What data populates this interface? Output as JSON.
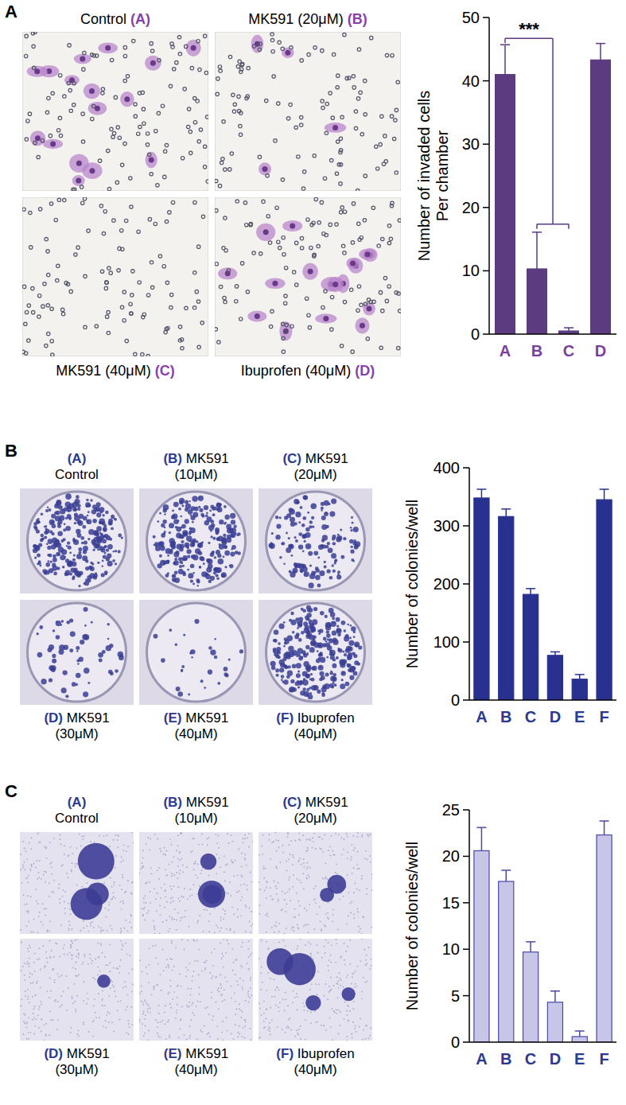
{
  "chart_data": [
    {
      "type": "bar",
      "panel": "A",
      "image_labels": [
        {
          "name": "Control",
          "letter": "(A)"
        },
        {
          "name": "MK591 (20μM)",
          "letter": "(B)"
        },
        {
          "name": "MK591 (40μM)",
          "letter": "(C)"
        },
        {
          "name": "Ibuprofen (40μM)",
          "letter": "(D)"
        }
      ],
      "y_label": [
        "Number of invaded cells",
        "Per chamber"
      ],
      "categories": [
        "A",
        "B",
        "C",
        "D"
      ],
      "values": [
        41,
        10.3,
        0.5,
        43.3
      ],
      "errors": [
        4.7,
        5.8,
        0.5,
        2.6
      ],
      "color": "#5c3b80",
      "ylim": [
        0,
        50
      ],
      "yticks": [
        0,
        10,
        20,
        30,
        40,
        50
      ],
      "annotations": [
        "***"
      ]
    },
    {
      "type": "bar",
      "panel": "B",
      "image_labels": [
        {
          "letter": "(A)",
          "lines": [
            "Control"
          ]
        },
        {
          "letter": "(B)",
          "lines": [
            "MK591",
            "(10μM)"
          ]
        },
        {
          "letter": "(C)",
          "lines": [
            "MK591",
            "(20μM)"
          ]
        },
        {
          "letter": "(D)",
          "lines": [
            "MK591",
            "(30μM)"
          ]
        },
        {
          "letter": "(E)",
          "lines": [
            "MK591",
            "(40μM)"
          ]
        },
        {
          "letter": "(F)",
          "lines": [
            "Ibuprofen",
            "(40μM)"
          ]
        }
      ],
      "y_label": [
        "Number of colonies/well"
      ],
      "categories": [
        "A",
        "B",
        "C",
        "D",
        "E",
        "F"
      ],
      "values": [
        348,
        316,
        182,
        77,
        36,
        345
      ],
      "errors": [
        15,
        13,
        10,
        6,
        8,
        18
      ],
      "color": "#28318f",
      "ylim": [
        0,
        400
      ],
      "yticks": [
        0,
        100,
        200,
        300,
        400
      ]
    },
    {
      "type": "bar",
      "panel": "C",
      "image_labels": [
        {
          "letter": "(A)",
          "lines": [
            "Control"
          ]
        },
        {
          "letter": "(B)",
          "lines": [
            "MK591",
            "(10μM)"
          ]
        },
        {
          "letter": "(C)",
          "lines": [
            "MK591",
            "(20μM)"
          ]
        },
        {
          "letter": "(D)",
          "lines": [
            "MK591",
            "(30μM)"
          ]
        },
        {
          "letter": "(E)",
          "lines": [
            "MK591",
            "(40μM)"
          ]
        },
        {
          "letter": "(F)",
          "lines": [
            "Ibuprofen",
            "(40μM)"
          ]
        }
      ],
      "y_label": [
        "Number of colonies/well"
      ],
      "categories": [
        "A",
        "B",
        "C",
        "D",
        "E",
        "F"
      ],
      "values": [
        20.6,
        17.3,
        9.7,
        4.3,
        0.6,
        22.3
      ],
      "errors": [
        2.5,
        1.2,
        1.1,
        1.2,
        0.6,
        1.5
      ],
      "color": "#c8c6e8",
      "ylim": [
        0,
        25
      ],
      "yticks": [
        0,
        5,
        10,
        15,
        20,
        25
      ]
    }
  ]
}
